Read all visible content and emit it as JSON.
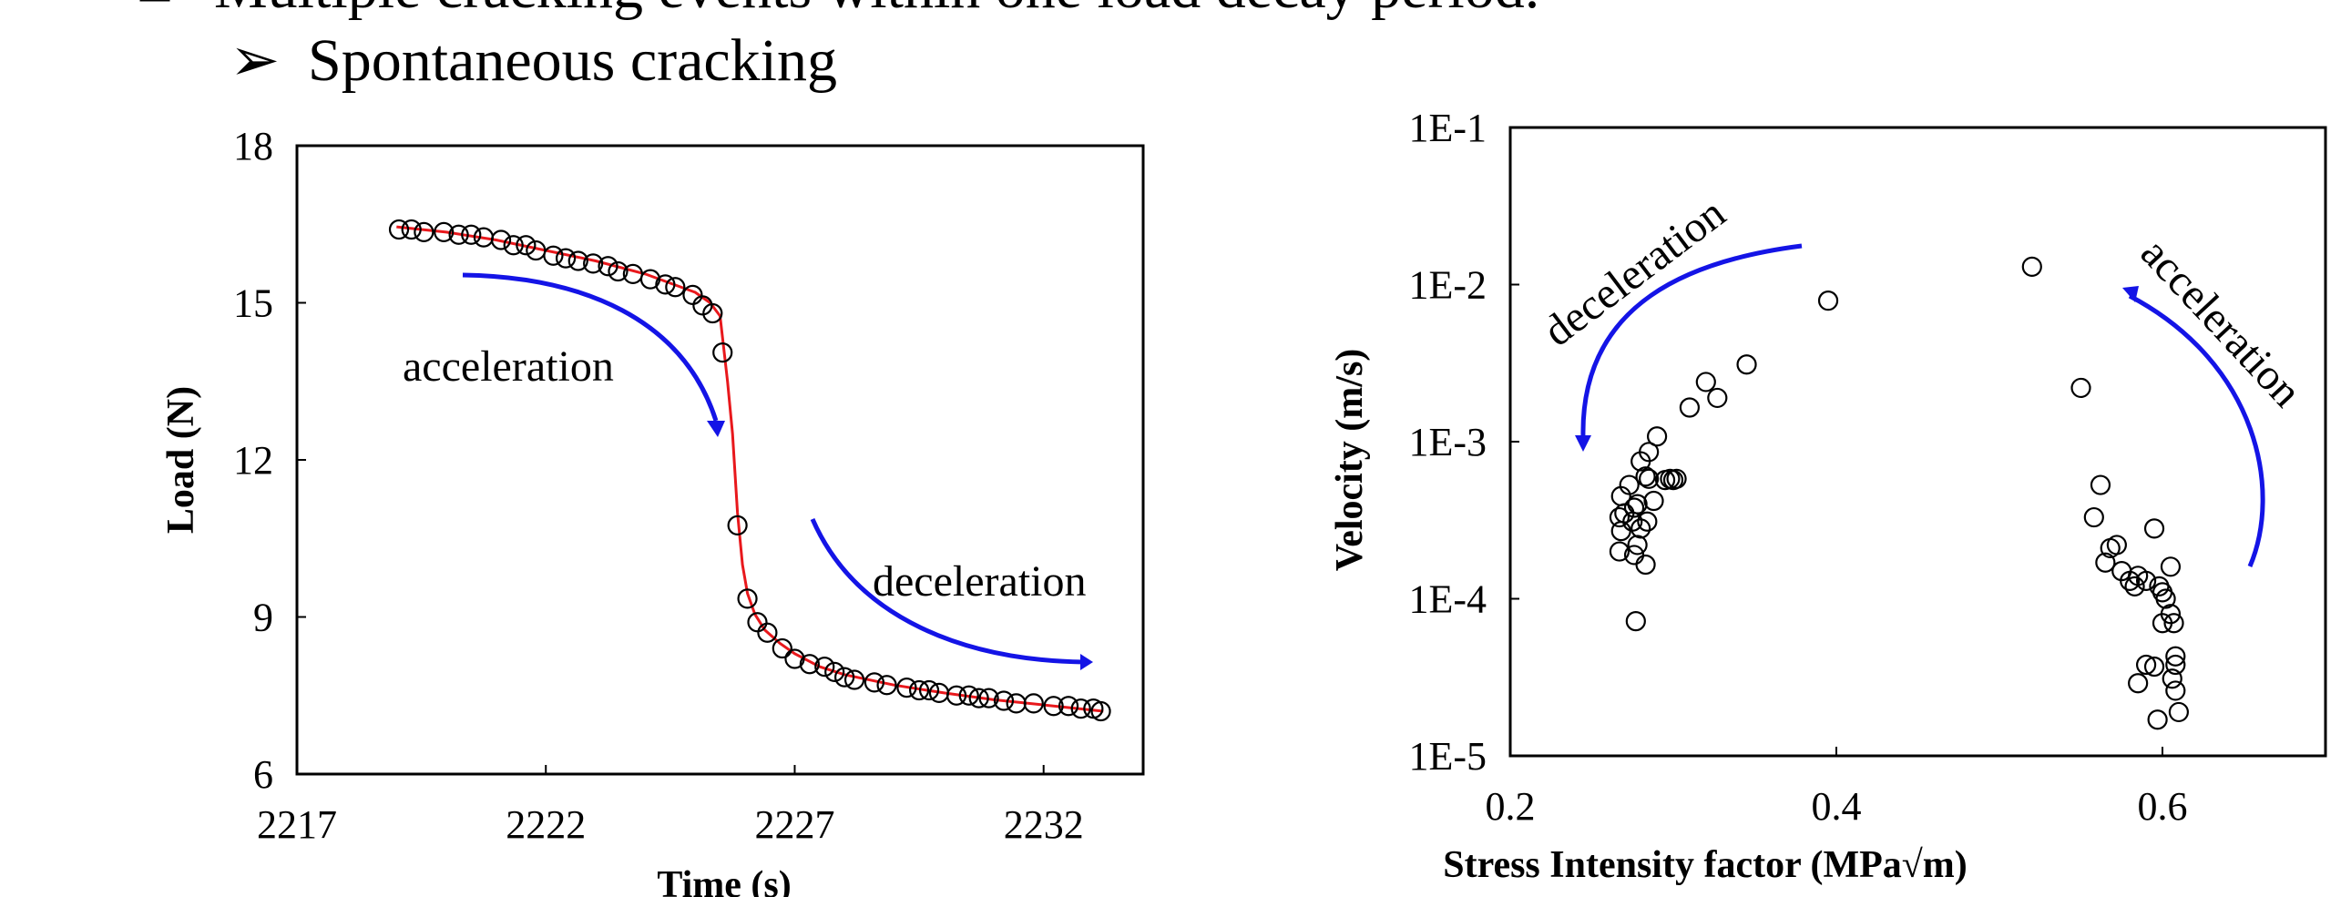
{
  "bullets": {
    "top_line": "Multiple cracking events within one load decay period.",
    "sub_item": "Spontaneous cracking"
  },
  "colors": {
    "fit_line": "#e8181c",
    "arrow": "#1414e6",
    "marker_stroke": "#000000"
  },
  "chart_data": [
    {
      "type": "scatter",
      "title": "",
      "xlabel": "Time (s)",
      "ylabel": "Load (N)",
      "xlim": [
        2217,
        2234
      ],
      "ylim": [
        6,
        18
      ],
      "xticks": [
        "2217",
        "2222",
        "2227",
        "2232"
      ],
      "yticks": [
        "6",
        "9",
        "12",
        "15",
        "18"
      ],
      "grid": false,
      "annotations": [
        "acceleration",
        "deceleration"
      ],
      "series": [
        {
          "marker": "open-circle",
          "x": [
            2219.05,
            2219.3,
            2219.55,
            2219.95,
            2220.25,
            2220.5,
            2220.75,
            2221.1,
            2221.35,
            2221.6,
            2221.8,
            2222.15,
            2222.4,
            2222.65,
            2222.95,
            2223.25,
            2223.45,
            2223.75,
            2224.1,
            2224.4,
            2224.6,
            2224.95,
            2225.15,
            2225.35,
            2225.55,
            2225.85,
            2226.05,
            2226.25,
            2226.45,
            2226.75,
            2227.0,
            2227.3,
            2227.6,
            2227.8,
            2228.0,
            2228.2,
            2228.6,
            2228.85,
            2229.25,
            2229.5,
            2229.7,
            2229.9,
            2230.25,
            2230.5,
            2230.7,
            2230.9,
            2231.2,
            2231.45,
            2231.8,
            2232.2,
            2232.5,
            2232.75,
            2233.0,
            2233.15
          ],
          "y": [
            16.4,
            16.4,
            16.35,
            16.35,
            16.3,
            16.3,
            16.25,
            16.2,
            16.1,
            16.1,
            16.0,
            15.9,
            15.85,
            15.8,
            15.75,
            15.7,
            15.6,
            15.55,
            15.45,
            15.35,
            15.3,
            15.15,
            14.95,
            14.8,
            14.05,
            10.75,
            9.35,
            8.9,
            8.7,
            8.4,
            8.2,
            8.1,
            8.05,
            7.95,
            7.85,
            7.8,
            7.75,
            7.7,
            7.65,
            7.6,
            7.6,
            7.55,
            7.5,
            7.5,
            7.45,
            7.45,
            7.4,
            7.35,
            7.35,
            7.3,
            7.3,
            7.25,
            7.25,
            7.2
          ]
        },
        {
          "type": "line",
          "marker": "none",
          "x": [
            2219.0,
            2220.0,
            2221.0,
            2222.0,
            2223.0,
            2224.0,
            2225.0,
            2225.3,
            2225.5,
            2225.65,
            2225.75,
            2225.85,
            2225.95,
            2226.05,
            2226.2,
            2226.4,
            2226.7,
            2227.0,
            2227.5,
            2228.0,
            2229.0,
            2230.0,
            2231.0,
            2232.0,
            2233.0,
            2233.2
          ],
          "y": [
            16.45,
            16.35,
            16.2,
            16.0,
            15.8,
            15.55,
            15.2,
            15.0,
            14.75,
            13.5,
            12.5,
            11.0,
            10.0,
            9.45,
            9.05,
            8.75,
            8.5,
            8.3,
            8.05,
            7.9,
            7.7,
            7.55,
            7.42,
            7.32,
            7.22,
            7.2
          ]
        }
      ]
    },
    {
      "type": "scatter",
      "title": "",
      "xlabel": "Stress Intensity factor (MPa√m)",
      "ylabel": "Velocity (m/s)",
      "xlim": [
        0.2,
        0.7
      ],
      "ylim": [
        1e-05,
        0.1
      ],
      "yscale": "log",
      "xticks": [
        "0.2",
        "0.4",
        "0.6"
      ],
      "yticks": [
        "1E-5",
        "1E-4",
        "1E-3",
        "1E-2",
        "1E-1"
      ],
      "grid": false,
      "annotations": [
        "deceleration",
        "acceleration"
      ],
      "series": [
        {
          "marker": "open-circle",
          "x": [
            0.395,
            0.32,
            0.345,
            0.327,
            0.31,
            0.29,
            0.285,
            0.28,
            0.283,
            0.295,
            0.3,
            0.302,
            0.298,
            0.285,
            0.273,
            0.288,
            0.268,
            0.278,
            0.276,
            0.27,
            0.267,
            0.284,
            0.275,
            0.268,
            0.28,
            0.278,
            0.276,
            0.267,
            0.283,
            0.277,
            0.52,
            0.55,
            0.562,
            0.558,
            0.572,
            0.565,
            0.575,
            0.58,
            0.568,
            0.595,
            0.585,
            0.59,
            0.598,
            0.605,
            0.6,
            0.583,
            0.602,
            0.605,
            0.6,
            0.607,
            0.595,
            0.608,
            0.606,
            0.59,
            0.585,
            0.608,
            0.597,
            0.61,
            0.608
          ],
          "y": [
            0.0079,
            0.0024,
            0.0031,
            0.0019,
            0.00165,
            0.00108,
            0.00086,
            0.00075,
            0.0006,
            0.00057,
            0.00057,
            0.00058,
            0.00058,
            0.00058,
            0.00053,
            0.00042,
            0.00045,
            0.0004,
            0.00038,
            0.00035,
            0.00033,
            0.00031,
            0.00031,
            0.00027,
            0.00028,
            0.00022,
            0.00019,
            0.0002,
            0.000165,
            7.2e-05,
            0.013,
            0.0022,
            0.00053,
            0.00033,
            0.00022,
            0.00017,
            0.00015,
            0.00013,
            0.00021,
            0.00028,
            0.00014,
            0.00013,
            0.00012,
            0.00016,
            0.00011,
            0.00012,
            0.0001,
            8e-05,
            7e-05,
            7e-05,
            3.7e-05,
            3.8e-05,
            3.1e-05,
            3.8e-05,
            2.9e-05,
            2.6e-05,
            1.7e-05,
            1.9e-05,
            4.3e-05
          ]
        }
      ]
    }
  ]
}
